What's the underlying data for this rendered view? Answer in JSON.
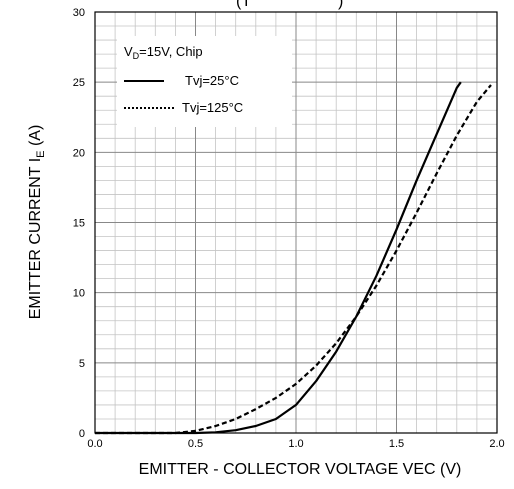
{
  "chart_data": {
    "type": "line",
    "title_fragment": "(T",
    "title_fragment_close": ")",
    "xlabel": "EMITTER - COLLECTOR VOLTAGE VEC (V)",
    "ylabel_main": "EMITTER CURRENT I",
    "ylabel_sub": "E",
    "ylabel_unit": " (A)",
    "xlim": [
      0.0,
      2.0
    ],
    "ylim": [
      0,
      30
    ],
    "x_ticks": [
      "0.0",
      "0.5",
      "1.0",
      "1.5",
      "2.0"
    ],
    "y_ticks": [
      "0",
      "5",
      "10",
      "15",
      "20",
      "25",
      "30"
    ],
    "x_tick_values": [
      0.0,
      0.5,
      1.0,
      1.5,
      2.0
    ],
    "y_tick_values": [
      0,
      5,
      10,
      15,
      20,
      25,
      30
    ],
    "minor_x_step": 0.1,
    "minor_y_step": 1,
    "grid": true,
    "legend": {
      "placement": "top-left",
      "header_main": "V",
      "header_sub": "D",
      "header_rest": "=15V, Chip"
    },
    "series": [
      {
        "name": "Tvj=25°C",
        "style": "solid",
        "color": "#000000",
        "x": [
          0.0,
          0.5,
          0.6,
          0.7,
          0.8,
          0.9,
          1.0,
          1.1,
          1.2,
          1.3,
          1.4,
          1.5,
          1.6,
          1.7,
          1.8,
          1.82
        ],
        "y": [
          0.0,
          0.0,
          0.05,
          0.2,
          0.5,
          1.0,
          2.0,
          3.7,
          5.8,
          8.3,
          11.2,
          14.5,
          18.0,
          21.3,
          24.6,
          25.0
        ]
      },
      {
        "name": "Tvj=125°C",
        "style": "dotted",
        "color": "#000000",
        "x": [
          0.0,
          0.4,
          0.5,
          0.6,
          0.7,
          0.8,
          0.9,
          1.0,
          1.1,
          1.2,
          1.3,
          1.4,
          1.5,
          1.6,
          1.7,
          1.8,
          1.9,
          1.97
        ],
        "y": [
          0.0,
          0.0,
          0.15,
          0.5,
          1.0,
          1.7,
          2.5,
          3.5,
          4.8,
          6.4,
          8.3,
          10.5,
          13.0,
          15.7,
          18.5,
          21.2,
          23.6,
          24.8
        ]
      }
    ]
  }
}
